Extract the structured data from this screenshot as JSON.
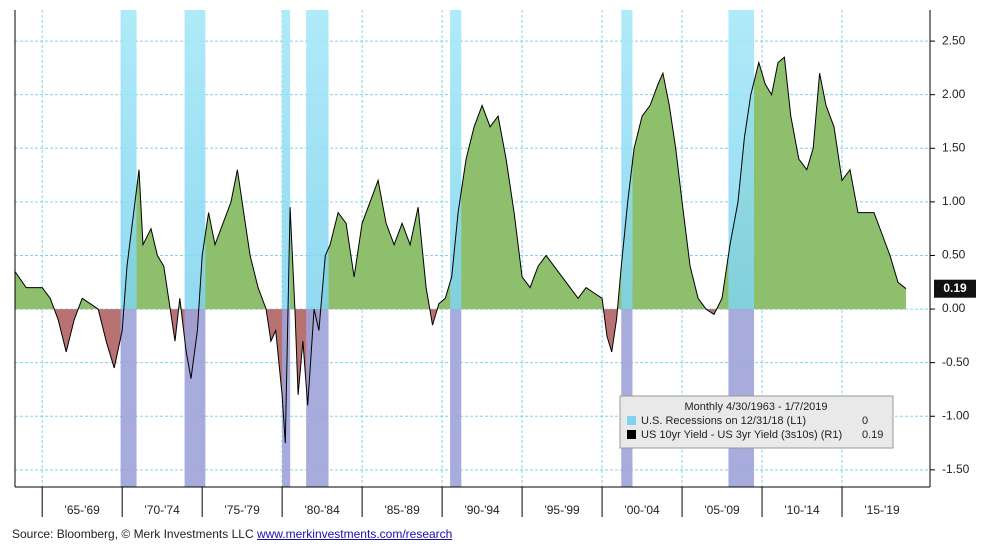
{
  "chart_data": {
    "type": "area",
    "xlim": [
      1963.3,
      2020.5
    ],
    "xticks": [
      {
        "value": 1965,
        "label": "'65-'69"
      },
      {
        "value": 1970,
        "label": "'70-'74"
      },
      {
        "value": 1975,
        "label": "'75-'79"
      },
      {
        "value": 1980,
        "label": "'80-'84"
      },
      {
        "value": 1985,
        "label": "'85-'89"
      },
      {
        "value": 1990,
        "label": "'90-'94"
      },
      {
        "value": 1995,
        "label": "'95-'99"
      },
      {
        "value": 2000,
        "label": "'00-'04"
      },
      {
        "value": 2005,
        "label": "'05-'09"
      },
      {
        "value": 2010,
        "label": "'10-'14"
      },
      {
        "value": 2015,
        "label": "'15-'19"
      }
    ],
    "ylim": [
      -1.66,
      2.79
    ],
    "yticks": [
      {
        "value": -1.5,
        "label": "-1.50"
      },
      {
        "value": -1,
        "label": "-1.00"
      },
      {
        "value": -0.5,
        "label": "-0.50"
      },
      {
        "value": 0,
        "label": "0.00"
      },
      {
        "value": 0.5,
        "label": "0.50"
      },
      {
        "value": 1,
        "label": "1.00"
      },
      {
        "value": 1.5,
        "label": "1.50"
      },
      {
        "value": 2,
        "label": "2.00"
      },
      {
        "value": 2.5,
        "label": "2.50"
      }
    ],
    "grid": true,
    "legend_header": "Monthly 4/30/1963 - 1/7/2019",
    "recessions": {
      "name": "U.S. Recessions on 12/31/18 (L1)",
      "color": "#7fd3ef",
      "last_value": 0,
      "periods": [
        [
          1969.9,
          1970.9
        ],
        [
          1973.9,
          1975.2
        ],
        [
          1980.0,
          1980.5
        ],
        [
          1981.5,
          1982.9
        ],
        [
          1990.5,
          1991.2
        ],
        [
          2001.2,
          2001.9
        ],
        [
          2007.9,
          2009.5
        ]
      ]
    },
    "series": [
      {
        "name": "US 10yr Yield - US 3yr Yield (3s10s) (R1)",
        "color": "#000000",
        "positive_color": "#8dbf6c",
        "negative_color": "#b97272",
        "x": [
          1963.3,
          1964,
          1965,
          1965.5,
          1966,
          1966.5,
          1967,
          1967.5,
          1968,
          1968.5,
          1969,
          1969.5,
          1970,
          1970.3,
          1970.8,
          1971.05,
          1971.3,
          1971.8,
          1972.2,
          1972.6,
          1973,
          1973.3,
          1973.6,
          1974,
          1974.3,
          1974.7,
          1975,
          1975.4,
          1975.8,
          1976.3,
          1976.8,
          1977.2,
          1977.6,
          1978,
          1978.5,
          1979,
          1979.3,
          1979.6,
          1980,
          1980.2,
          1980.5,
          1980.8,
          1981,
          1981.3,
          1981.6,
          1982,
          1982.3,
          1982.7,
          1983,
          1983.5,
          1984,
          1984.5,
          1985,
          1985.5,
          1986,
          1986.5,
          1987,
          1987.5,
          1988,
          1988.5,
          1989,
          1989.4,
          1989.8,
          1990.2,
          1990.6,
          1991,
          1991.5,
          1992,
          1992.5,
          1993,
          1993.5,
          1994,
          1994.5,
          1995,
          1995.5,
          1996,
          1996.5,
          1997,
          1997.5,
          1998,
          1998.5,
          1999,
          1999.5,
          2000,
          2000.3,
          2000.6,
          2000.9,
          2001.2,
          2001.6,
          2002,
          2002.5,
          2003,
          2003.5,
          2003.8,
          2004.2,
          2004.6,
          2005,
          2005.5,
          2006,
          2006.5,
          2007,
          2007.5,
          2008,
          2008.5,
          2008.9,
          2009.3,
          2009.8,
          2010.2,
          2010.6,
          2011,
          2011.4,
          2011.8,
          2012.3,
          2012.8,
          2013.2,
          2013.6,
          2014,
          2014.5,
          2015,
          2015.5,
          2016,
          2016.5,
          2017,
          2017.5,
          2018,
          2018.5,
          2019.0
        ],
        "values": [
          0.35,
          0.2,
          0.2,
          0.1,
          -0.1,
          -0.4,
          -0.1,
          0.1,
          0.05,
          0,
          -0.3,
          -0.55,
          -0.2,
          0.4,
          1,
          1.3,
          0.6,
          0.75,
          0.5,
          0.4,
          0,
          -0.3,
          0.1,
          -0.4,
          -0.65,
          -0.2,
          0.5,
          0.9,
          0.6,
          0.8,
          1,
          1.3,
          0.9,
          0.5,
          0.2,
          0,
          -0.3,
          -0.2,
          -0.8,
          -1.25,
          0.95,
          0,
          -0.8,
          -0.3,
          -0.9,
          0,
          -0.2,
          0.5,
          0.6,
          0.9,
          0.8,
          0.3,
          0.8,
          1,
          1.2,
          0.8,
          0.6,
          0.8,
          0.6,
          0.95,
          0.2,
          -0.15,
          0.05,
          0.1,
          0.3,
          0.9,
          1.4,
          1.7,
          1.9,
          1.7,
          1.8,
          1.4,
          0.9,
          0.3,
          0.2,
          0.4,
          0.5,
          0.4,
          0.3,
          0.2,
          0.1,
          0.2,
          0.15,
          0.1,
          -0.25,
          -0.4,
          -0.1,
          0.4,
          1,
          1.5,
          1.8,
          1.9,
          2.1,
          2.2,
          1.9,
          1.5,
          1,
          0.4,
          0.1,
          0,
          -0.05,
          0.1,
          0.6,
          1,
          1.6,
          2,
          2.3,
          2.1,
          2,
          2.3,
          2.35,
          1.8,
          1.4,
          1.3,
          1.5,
          2.2,
          1.9,
          1.7,
          1.2,
          1.3,
          0.9,
          0.9,
          0.9,
          0.7,
          0.5,
          0.25,
          0.19
        ]
      }
    ],
    "source_text": "Source: Bloomberg, © Merk Investments LLC",
    "source_link": "www.merkinvestments.com/research"
  }
}
